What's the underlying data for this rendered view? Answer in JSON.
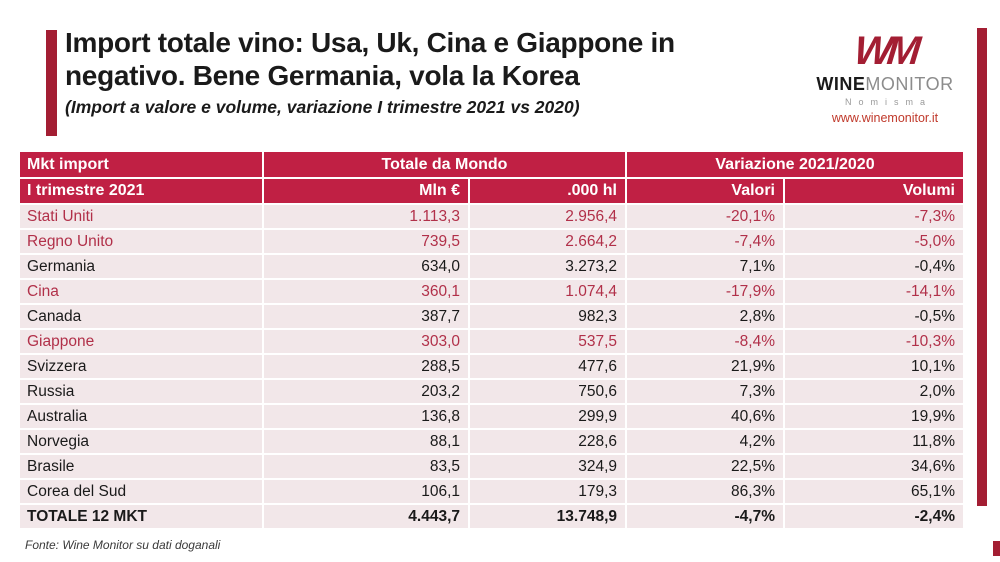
{
  "header": {
    "title_line1": "Import totale vino: Usa, Uk, Cina e Giappone in",
    "title_line2": "negativo. Bene Germania, vola la Korea",
    "subtitle": "(Import a valore e volume, variazione I trimestre 2021 vs 2020)"
  },
  "logo": {
    "monogram": "WM",
    "brand_bold": "WINE",
    "brand_light": "MONITOR",
    "company": "Nomisma",
    "url": "www.winemonitor.it"
  },
  "colors": {
    "header_crimson": "#C02044",
    "accent_dark_red": "#A31E33",
    "row_background": "#F2E7E9",
    "negative_market_red": "#B13049"
  },
  "table": {
    "header_row1": {
      "col1": "Mkt import",
      "group_world": "Totale da Mondo",
      "group_variation": "Variazione 2021/2020"
    },
    "header_row2": {
      "col1": "I trimestre 2021",
      "col2": "Mln €",
      "col3": ".000 hl",
      "col4": "Valori",
      "col5": "Volumi"
    },
    "rows": [
      {
        "market": "Stati Uniti",
        "mln_eur": "1.113,3",
        "hl": "2.956,4",
        "valori": "-20,1%",
        "volumi": "-7,3%",
        "highlight": true,
        "bold": false
      },
      {
        "market": "Regno Unito",
        "mln_eur": "739,5",
        "hl": "2.664,2",
        "valori": "-7,4%",
        "volumi": "-5,0%",
        "highlight": true,
        "bold": false
      },
      {
        "market": "Germania",
        "mln_eur": "634,0",
        "hl": "3.273,2",
        "valori": "7,1%",
        "volumi": "-0,4%",
        "highlight": false,
        "bold": false
      },
      {
        "market": "Cina",
        "mln_eur": "360,1",
        "hl": "1.074,4",
        "valori": "-17,9%",
        "volumi": "-14,1%",
        "highlight": true,
        "bold": false
      },
      {
        "market": "Canada",
        "mln_eur": "387,7",
        "hl": "982,3",
        "valori": "2,8%",
        "volumi": "-0,5%",
        "highlight": false,
        "bold": false
      },
      {
        "market": "Giappone",
        "mln_eur": "303,0",
        "hl": "537,5",
        "valori": "-8,4%",
        "volumi": "-10,3%",
        "highlight": true,
        "bold": false
      },
      {
        "market": "Svizzera",
        "mln_eur": "288,5",
        "hl": "477,6",
        "valori": "21,9%",
        "volumi": "10,1%",
        "highlight": false,
        "bold": false
      },
      {
        "market": "Russia",
        "mln_eur": "203,2",
        "hl": "750,6",
        "valori": "7,3%",
        "volumi": "2,0%",
        "highlight": false,
        "bold": false
      },
      {
        "market": "Australia",
        "mln_eur": "136,8",
        "hl": "299,9",
        "valori": "40,6%",
        "volumi": "19,9%",
        "highlight": false,
        "bold": false
      },
      {
        "market": "Norvegia",
        "mln_eur": "88,1",
        "hl": "228,6",
        "valori": "4,2%",
        "volumi": "11,8%",
        "highlight": false,
        "bold": false
      },
      {
        "market": "Brasile",
        "mln_eur": "83,5",
        "hl": "324,9",
        "valori": "22,5%",
        "volumi": "34,6%",
        "highlight": false,
        "bold": false
      },
      {
        "market": "Corea del Sud",
        "mln_eur": "106,1",
        "hl": "179,3",
        "valori": "86,3%",
        "volumi": "65,1%",
        "highlight": false,
        "bold": false
      },
      {
        "market": "TOTALE 12 MKT",
        "mln_eur": "4.443,7",
        "hl": "13.748,9",
        "valori": "-4,7%",
        "volumi": "-2,4%",
        "highlight": false,
        "bold": true
      }
    ]
  },
  "footer": {
    "source": "Fonte: Wine Monitor su dati doganali"
  }
}
